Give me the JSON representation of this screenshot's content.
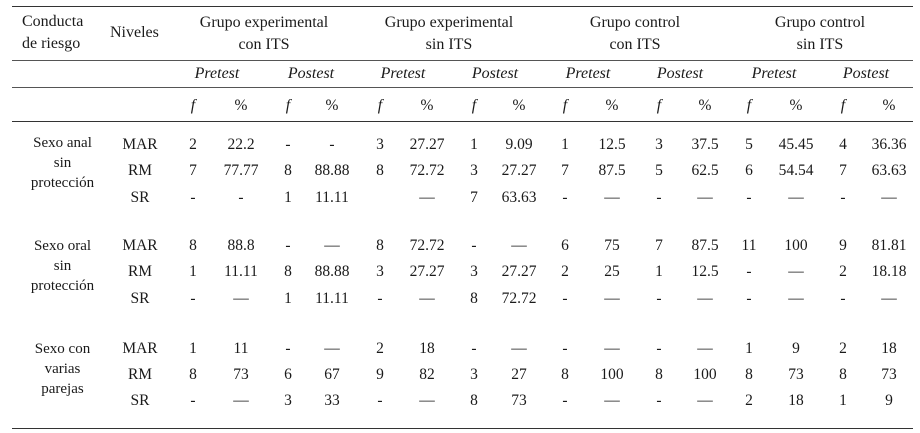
{
  "header": {
    "conducta": [
      "Conducta",
      "de riesgo"
    ],
    "niveles": "Niveles",
    "groups": [
      [
        "Grupo experimental",
        "con ITS"
      ],
      [
        "Grupo experimental",
        "sin ITS"
      ],
      [
        "Grupo control",
        "con ITS"
      ],
      [
        "Grupo control",
        "sin ITS"
      ]
    ],
    "pretest": "Pretest",
    "postest": "Postest",
    "f": "f",
    "pct": "%"
  },
  "blocks": [
    {
      "label": [
        "Sexo anal",
        "sin",
        "protección"
      ],
      "rows": [
        {
          "level": "MAR",
          "values": [
            "2",
            "22.2",
            "-",
            "-",
            "3",
            "27.27",
            "1",
            "9.09",
            "1",
            "12.5",
            "3",
            "37.5",
            "5",
            "45.45",
            "4",
            "36.36"
          ]
        },
        {
          "level": "RM",
          "values": [
            "7",
            "77.77",
            "8",
            "88.88",
            "8",
            "72.72",
            "3",
            "27.27",
            "7",
            "87.5",
            "5",
            "62.5",
            "6",
            "54.54",
            "7",
            "63.63"
          ]
        },
        {
          "level": "SR",
          "values": [
            "-",
            "-",
            "1",
            "11.11",
            "",
            "—",
            "7",
            "63.63",
            "-",
            "—",
            "-",
            "—",
            "-",
            "—",
            "-",
            "—"
          ]
        }
      ]
    },
    {
      "label": [
        "Sexo oral",
        "sin",
        "protección"
      ],
      "rows": [
        {
          "level": "MAR",
          "values": [
            "8",
            "88.8",
            "-",
            "—",
            "8",
            "72.72",
            "-",
            "—",
            "6",
            "75",
            "7",
            "87.5",
            "11",
            "100",
            "9",
            "81.81"
          ]
        },
        {
          "level": "RM",
          "values": [
            "1",
            "11.11",
            "8",
            "88.88",
            "3",
            "27.27",
            "3",
            "27.27",
            "2",
            "25",
            "1",
            "12.5",
            "-",
            "—",
            "2",
            "18.18"
          ]
        },
        {
          "level": "SR",
          "values": [
            "-",
            "—",
            "1",
            "11.11",
            "-",
            "—",
            "8",
            "72.72",
            "-",
            "—",
            "-",
            "—",
            "-",
            "—",
            "-",
            "—"
          ]
        }
      ]
    },
    {
      "label": [
        "Sexo con",
        "varias",
        "parejas"
      ],
      "rows": [
        {
          "level": "MAR",
          "values": [
            "1",
            "11",
            "-",
            "—",
            "2",
            "18",
            "-",
            "—",
            "-",
            "—",
            "-",
            "—",
            "1",
            "9",
            "2",
            "18"
          ]
        },
        {
          "level": "RM",
          "values": [
            "8",
            "73",
            "6",
            "67",
            "9",
            "82",
            "3",
            "27",
            "8",
            "100",
            "8",
            "100",
            "8",
            "73",
            "8",
            "73"
          ]
        },
        {
          "level": "SR",
          "values": [
            "-",
            "—",
            "3",
            "33",
            "-",
            "—",
            "8",
            "73",
            "-",
            "—",
            "-",
            "—",
            "2",
            "18",
            "1",
            "9"
          ]
        }
      ]
    }
  ]
}
